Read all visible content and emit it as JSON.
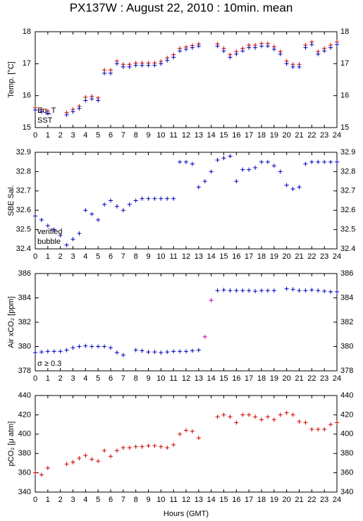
{
  "title": "PX137W : August 22, 2010 : 10min. mean",
  "x_label": "Hours (GMT)",
  "chart_data": [
    {
      "type": "scatter",
      "y_label": "Temp. [°C]",
      "xlim": [
        0,
        24
      ],
      "xticks": [
        0,
        1,
        2,
        3,
        4,
        5,
        6,
        7,
        8,
        9,
        10,
        11,
        12,
        13,
        14,
        15,
        16,
        17,
        18,
        19,
        20,
        21,
        22,
        23,
        24
      ],
      "ylim": [
        15,
        18
      ],
      "yticks": [
        15,
        16,
        17,
        18
      ],
      "x": [
        0,
        0.5,
        1,
        1.5,
        2,
        2.5,
        3,
        3.5,
        4,
        4.5,
        5,
        5.5,
        6,
        6.5,
        7,
        7.5,
        8,
        8.5,
        9,
        9.5,
        10,
        10.5,
        11,
        11.5,
        12,
        12.5,
        13,
        13.5,
        14,
        14.5,
        15,
        15.5,
        16,
        16.5,
        17,
        17.5,
        18,
        18.5,
        19,
        19.5,
        20,
        20.5,
        21,
        21.5,
        22,
        22.5,
        23,
        23.5,
        24
      ],
      "series": [
        {
          "name": "Eq_T",
          "color": "#d00000",
          "values": [
            15.62,
            15.57,
            15.52,
            null,
            null,
            15.47,
            15.57,
            15.67,
            15.95,
            15.98,
            15.93,
            16.8,
            16.8,
            17.08,
            16.98,
            16.98,
            17.02,
            17.02,
            17.02,
            17.02,
            17.07,
            17.18,
            17.28,
            17.48,
            17.52,
            17.57,
            17.62,
            null,
            null,
            17.62,
            17.48,
            17.28,
            17.38,
            17.48,
            17.58,
            17.58,
            17.63,
            17.63,
            17.53,
            17.38,
            17.08,
            16.98,
            16.98,
            17.58,
            17.68,
            17.38,
            17.48,
            17.58,
            17.68
          ]
        },
        {
          "name": "SST",
          "color": "#0000c0",
          "values": [
            15.55,
            15.5,
            15.45,
            null,
            null,
            15.4,
            15.5,
            15.6,
            15.85,
            15.9,
            15.85,
            16.7,
            16.7,
            17.0,
            16.9,
            16.9,
            16.95,
            16.95,
            16.95,
            16.95,
            17.0,
            17.1,
            17.2,
            17.4,
            17.45,
            17.5,
            17.55,
            null,
            null,
            17.55,
            17.4,
            17.2,
            17.3,
            17.4,
            17.5,
            17.5,
            17.55,
            17.55,
            17.45,
            17.3,
            17.0,
            16.9,
            16.9,
            17.5,
            17.6,
            17.3,
            17.4,
            17.5,
            17.6
          ]
        }
      ]
    },
    {
      "type": "scatter",
      "y_label": "SBE Sal.",
      "xlim": [
        0,
        24
      ],
      "xticks": [
        0,
        1,
        2,
        3,
        4,
        5,
        6,
        7,
        8,
        9,
        10,
        11,
        12,
        13,
        14,
        15,
        16,
        17,
        18,
        19,
        20,
        21,
        22,
        23,
        24
      ],
      "ylim": [
        32.4,
        32.9
      ],
      "yticks": [
        32.4,
        32.5,
        32.6,
        32.7,
        32.8,
        32.9
      ],
      "x": [
        0,
        0.5,
        1,
        1.5,
        2,
        2.5,
        3,
        3.5,
        4,
        4.5,
        5,
        5.5,
        6,
        6.5,
        7,
        7.5,
        8,
        8.5,
        9,
        9.5,
        10,
        10.5,
        11,
        11.5,
        12,
        12.5,
        13,
        13.5,
        14,
        14.5,
        15,
        15.5,
        16,
        16.5,
        17,
        17.5,
        18,
        18.5,
        19,
        19.5,
        20,
        20.5,
        21,
        21.5,
        22,
        22.5,
        23,
        23.5,
        24
      ],
      "series": [
        {
          "name": "verified",
          "color": "#0000c0",
          "values": [
            32.57,
            32.55,
            32.52,
            32.5,
            32.47,
            32.42,
            32.45,
            32.48,
            32.6,
            32.58,
            32.55,
            32.63,
            32.65,
            32.62,
            32.6,
            32.63,
            32.65,
            32.66,
            32.66,
            32.66,
            32.66,
            32.66,
            32.66,
            32.85,
            32.85,
            32.84,
            32.72,
            32.75,
            32.8,
            32.86,
            32.87,
            32.88,
            32.75,
            32.81,
            32.81,
            32.82,
            32.85,
            32.85,
            32.83,
            32.8,
            32.73,
            32.71,
            32.72,
            32.84,
            32.85,
            32.85,
            32.85,
            32.85,
            32.85
          ]
        },
        {
          "name": "bubble",
          "color": "#c000c0",
          "values": [
            null,
            null,
            null,
            null,
            null,
            null,
            null,
            null,
            null,
            null,
            null,
            null,
            null,
            null,
            null,
            null,
            null,
            null,
            null,
            null,
            null,
            null,
            null,
            null,
            null,
            null,
            null,
            null,
            null,
            null,
            null,
            null,
            null,
            null,
            null,
            null,
            null,
            null,
            null,
            null,
            null,
            null,
            null,
            null,
            null,
            null,
            null,
            null,
            null
          ]
        }
      ]
    },
    {
      "type": "scatter",
      "y_label": "Air xCO₂ [ppm]",
      "xlim": [
        0,
        24
      ],
      "xticks": [
        0,
        1,
        2,
        3,
        4,
        5,
        6,
        7,
        8,
        9,
        10,
        11,
        12,
        13,
        14,
        15,
        16,
        17,
        18,
        19,
        20,
        21,
        22,
        23,
        24
      ],
      "ylim": [
        378,
        386
      ],
      "yticks": [
        378,
        380,
        382,
        384,
        386
      ],
      "x": [
        0,
        0.5,
        1,
        1.5,
        2,
        2.5,
        3,
        3.5,
        4,
        4.5,
        5,
        5.5,
        6,
        6.5,
        7,
        7.5,
        8,
        8.5,
        9,
        9.5,
        10,
        10.5,
        11,
        11.5,
        12,
        12.5,
        13,
        13.5,
        14,
        14.5,
        15,
        15.5,
        16,
        16.5,
        17,
        17.5,
        18,
        18.5,
        19,
        19.5,
        20,
        20.5,
        21,
        21.5,
        22,
        22.5,
        23,
        23.5,
        24
      ],
      "series": [
        {
          "color": "#0000c0",
          "values": [
            379.5,
            379.55,
            379.6,
            379.6,
            379.6,
            379.7,
            379.9,
            380.0,
            380.05,
            380.0,
            380.0,
            380.0,
            379.9,
            379.5,
            379.3,
            null,
            379.7,
            379.65,
            379.55,
            379.55,
            379.5,
            379.55,
            379.6,
            379.6,
            379.6,
            379.65,
            379.7,
            null,
            null,
            384.6,
            384.65,
            384.6,
            384.6,
            384.6,
            384.6,
            384.55,
            384.6,
            384.6,
            384.6,
            null,
            384.75,
            384.7,
            384.6,
            384.6,
            384.65,
            384.6,
            384.55,
            384.5,
            384.5
          ]
        },
        {
          "name": "σ ≥ 0.3",
          "color": "#c000c0",
          "values": [
            null,
            null,
            null,
            null,
            null,
            null,
            null,
            null,
            null,
            null,
            null,
            null,
            null,
            null,
            null,
            null,
            null,
            null,
            null,
            null,
            null,
            null,
            null,
            null,
            null,
            null,
            null,
            380.8,
            383.8,
            null,
            null,
            null,
            null,
            null,
            null,
            null,
            null,
            null,
            null,
            null,
            null,
            null,
            null,
            null,
            null,
            null,
            null,
            null,
            null
          ]
        }
      ]
    },
    {
      "type": "scatter",
      "y_label": "pCO₂ [μ atm]",
      "xlim": [
        0,
        24
      ],
      "xticks": [
        0,
        1,
        2,
        3,
        4,
        5,
        6,
        7,
        8,
        9,
        10,
        11,
        12,
        13,
        14,
        15,
        16,
        17,
        18,
        19,
        20,
        21,
        22,
        23,
        24
      ],
      "ylim": [
        340,
        440
      ],
      "yticks": [
        340,
        360,
        380,
        400,
        420,
        440
      ],
      "x": [
        0,
        0.5,
        1,
        1.5,
        2,
        2.5,
        3,
        3.5,
        4,
        4.5,
        5,
        5.5,
        6,
        6.5,
        7,
        7.5,
        8,
        8.5,
        9,
        9.5,
        10,
        10.5,
        11,
        11.5,
        12,
        12.5,
        13,
        13.5,
        14,
        14.5,
        15,
        15.5,
        16,
        16.5,
        17,
        17.5,
        18,
        18.5,
        19,
        19.5,
        20,
        20.5,
        21,
        21.5,
        22,
        22.5,
        23,
        23.5,
        24
      ],
      "series": [
        {
          "color": "#d00000",
          "values": [
            360,
            358,
            365,
            null,
            null,
            369,
            371,
            375,
            378,
            374,
            372,
            383,
            377,
            383,
            386,
            386,
            387,
            387,
            388,
            388,
            387,
            386,
            389,
            400,
            404,
            403,
            396,
            null,
            null,
            418,
            420,
            418,
            412,
            420,
            420,
            418,
            415,
            418,
            415,
            420,
            422,
            420,
            413,
            412,
            405,
            405,
            405,
            410,
            412
          ]
        }
      ]
    }
  ]
}
